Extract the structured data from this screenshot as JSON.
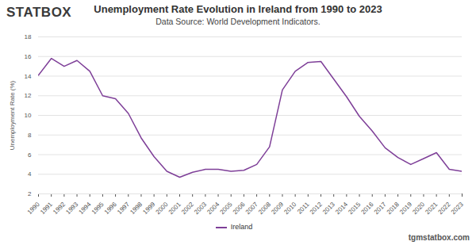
{
  "chart_data": {
    "type": "line",
    "logo": "STATBOX",
    "title": "Unemployment Rate Evolution in Ireland from 1990 to 2023",
    "subtitle": "Data Source: World Development Indicators.",
    "footer": "tgmstatbox.com",
    "y_label": "Unemployment Rate (%)",
    "x": [
      1990,
      1991,
      1992,
      1993,
      1994,
      1995,
      1996,
      1997,
      1998,
      1999,
      2000,
      2001,
      2002,
      2003,
      2004,
      2005,
      2006,
      2007,
      2008,
      2009,
      2010,
      2011,
      2012,
      2013,
      2014,
      2015,
      2016,
      2017,
      2018,
      2019,
      2020,
      2021,
      2022,
      2023
    ],
    "series": [
      {
        "name": "Ireland",
        "color": "#7e3f98",
        "values": [
          14.1,
          15.8,
          15.0,
          15.6,
          14.5,
          12.0,
          11.7,
          10.2,
          7.7,
          5.8,
          4.3,
          3.7,
          4.2,
          4.5,
          4.5,
          4.3,
          4.4,
          5.0,
          6.8,
          12.6,
          14.5,
          15.4,
          15.5,
          13.7,
          11.9,
          9.9,
          8.4,
          6.7,
          5.7,
          5.0,
          5.6,
          6.2,
          4.5,
          4.3
        ]
      }
    ],
    "xlim": [
      1990,
      2023
    ],
    "xticks": [
      1990,
      1991,
      1992,
      1993,
      1994,
      1995,
      1996,
      1997,
      1998,
      1999,
      2000,
      2001,
      2002,
      2003,
      2004,
      2005,
      2006,
      2007,
      2008,
      2009,
      2010,
      2011,
      2012,
      2013,
      2014,
      2015,
      2016,
      2017,
      2018,
      2019,
      2020,
      2021,
      2022,
      2023
    ],
    "ylim": [
      2,
      18
    ],
    "yticks": [
      2,
      4,
      6,
      8,
      10,
      12,
      14,
      16,
      18
    ],
    "grid": true,
    "legend": "bottom"
  }
}
